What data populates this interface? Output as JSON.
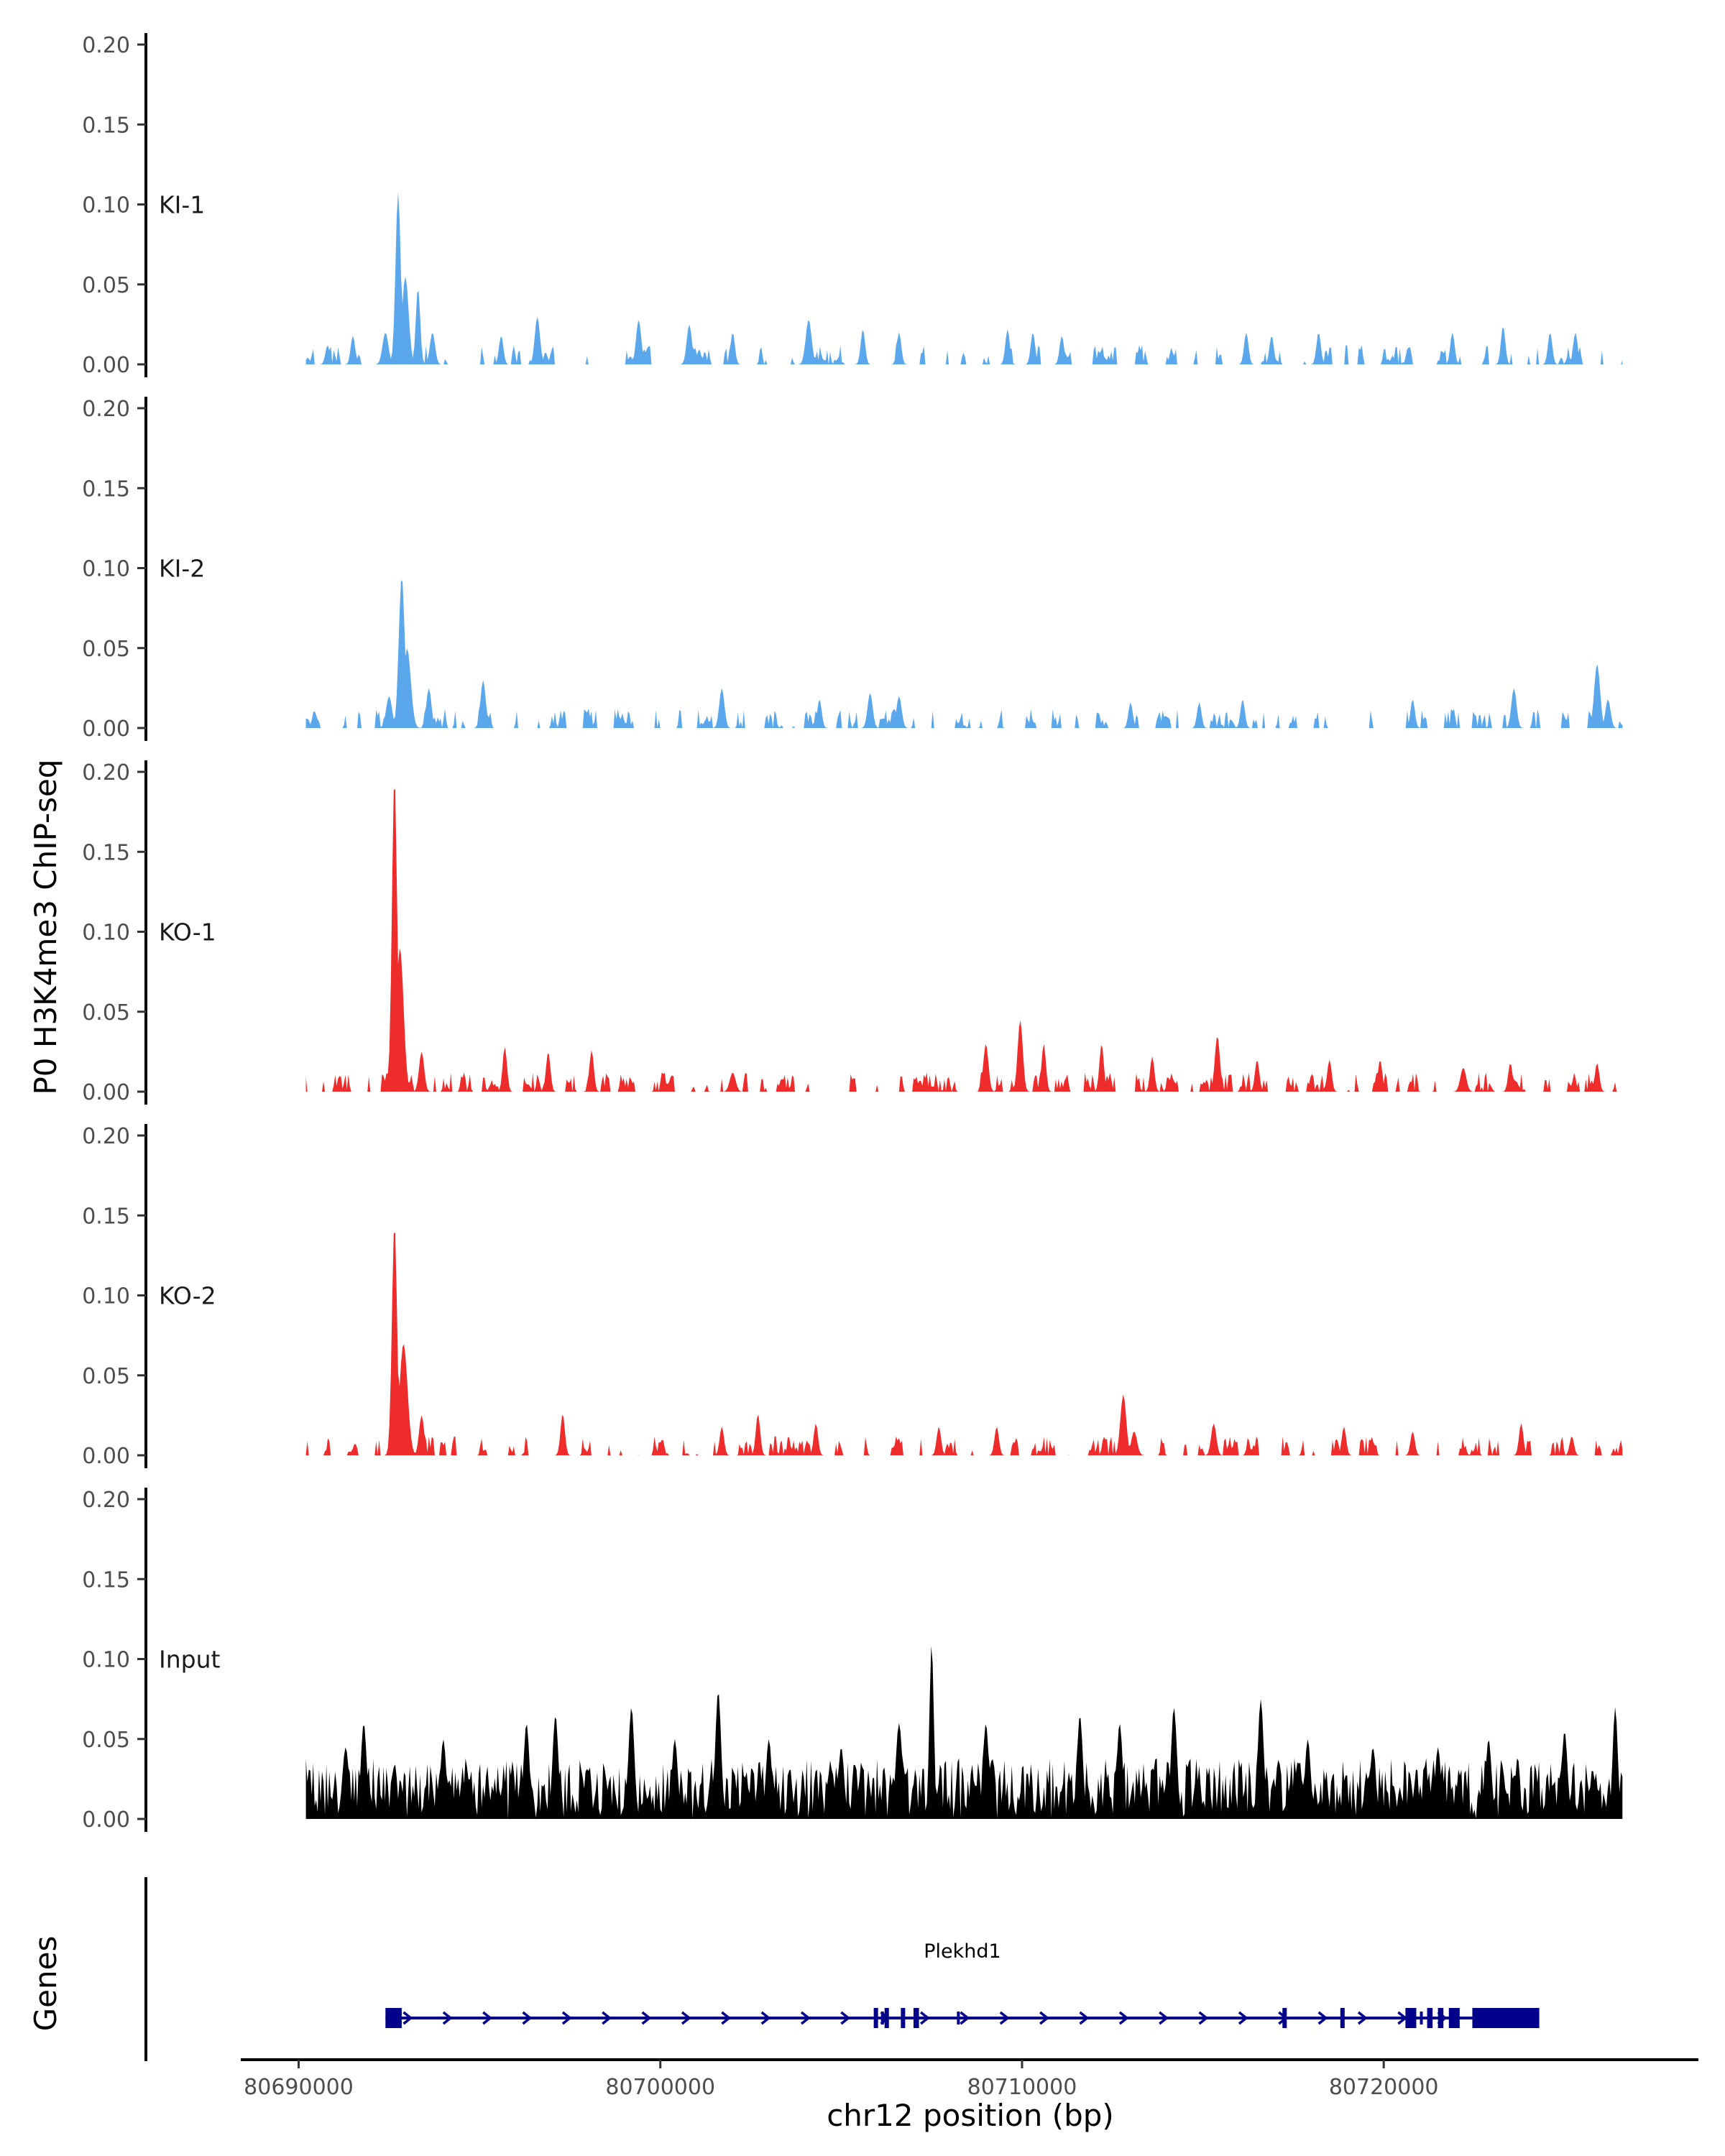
{
  "chart_data": {
    "type": "area",
    "ylabel": "P0 H3K4me3 ChIP-seq",
    "xlabel": "chr12 position (bp)",
    "xlim": [
      80688400,
      80728700
    ],
    "ylim": [
      0,
      0.2
    ],
    "yticks": [
      0,
      0.05,
      0.1,
      0.15,
      0.2
    ],
    "ytick_labels": [
      "0.00",
      "0.05",
      "0.10",
      "0.15",
      "0.20"
    ],
    "xticks": [
      80690000,
      80700000,
      80710000,
      80720000
    ],
    "xtick_labels": [
      "80690000",
      "80700000",
      "80710000",
      "80720000"
    ],
    "data_range": [
      80690200,
      80726600
    ],
    "tracks": [
      {
        "name": "KI-1",
        "color": "#5aa7ec",
        "peaks": [
          [
            80692750,
            0.108,
            70
          ],
          [
            80692950,
            0.055,
            90
          ],
          [
            80693300,
            0.048,
            60
          ],
          [
            80692400,
            0.02,
            80
          ],
          [
            80693700,
            0.02,
            70
          ],
          [
            80690800,
            0.012,
            60
          ],
          [
            80691500,
            0.018,
            60
          ],
          [
            80695600,
            0.018,
            60
          ],
          [
            80696600,
            0.03,
            70
          ],
          [
            80699400,
            0.028,
            70
          ],
          [
            80700800,
            0.025,
            70
          ],
          [
            80702000,
            0.02,
            60
          ],
          [
            80704100,
            0.028,
            80
          ],
          [
            80705600,
            0.022,
            60
          ],
          [
            80706600,
            0.02,
            60
          ],
          [
            80709600,
            0.022,
            60
          ],
          [
            80710300,
            0.02,
            60
          ],
          [
            80711100,
            0.018,
            60
          ],
          [
            80716200,
            0.02,
            60
          ],
          [
            80716900,
            0.018,
            60
          ],
          [
            80718200,
            0.02,
            60
          ],
          [
            80721900,
            0.02,
            60
          ],
          [
            80723300,
            0.024,
            60
          ],
          [
            80724600,
            0.02,
            60
          ],
          [
            80725300,
            0.02,
            60
          ]
        ]
      },
      {
        "name": "KI-2",
        "color": "#5aa7ec",
        "peaks": [
          [
            80692850,
            0.095,
            80
          ],
          [
            80693000,
            0.05,
            100
          ],
          [
            80693600,
            0.025,
            70
          ],
          [
            80692500,
            0.02,
            80
          ],
          [
            80695100,
            0.03,
            70
          ],
          [
            80701700,
            0.025,
            70
          ],
          [
            80704400,
            0.018,
            60
          ],
          [
            80705800,
            0.022,
            70
          ],
          [
            80706600,
            0.02,
            70
          ],
          [
            80713000,
            0.016,
            60
          ],
          [
            80714900,
            0.016,
            60
          ],
          [
            80716100,
            0.018,
            60
          ],
          [
            80720800,
            0.018,
            60
          ],
          [
            80723600,
            0.025,
            70
          ],
          [
            80725900,
            0.04,
            80
          ],
          [
            80726200,
            0.018,
            70
          ]
        ]
      },
      {
        "name": "KO-1",
        "color": "#ee2c2c",
        "peaks": [
          [
            80692650,
            0.197,
            70
          ],
          [
            80692800,
            0.09,
            100
          ],
          [
            80693400,
            0.025,
            70
          ],
          [
            80695700,
            0.028,
            60
          ],
          [
            80696900,
            0.025,
            60
          ],
          [
            80698100,
            0.026,
            60
          ],
          [
            80702000,
            0.012,
            80
          ],
          [
            80709000,
            0.03,
            70
          ],
          [
            80709950,
            0.045,
            70
          ],
          [
            80710600,
            0.03,
            60
          ],
          [
            80712200,
            0.03,
            60
          ],
          [
            80713600,
            0.022,
            60
          ],
          [
            80715400,
            0.035,
            70
          ],
          [
            80716500,
            0.02,
            60
          ],
          [
            80718500,
            0.02,
            60
          ],
          [
            80719900,
            0.02,
            60
          ],
          [
            80722200,
            0.015,
            80
          ],
          [
            80723500,
            0.018,
            60
          ],
          [
            80725900,
            0.018,
            60
          ]
        ]
      },
      {
        "name": "KO-2",
        "color": "#ee2c2c",
        "peaks": [
          [
            80692650,
            0.145,
            70
          ],
          [
            80692900,
            0.07,
            110
          ],
          [
            80693400,
            0.025,
            70
          ],
          [
            80697300,
            0.026,
            60
          ],
          [
            80701700,
            0.018,
            60
          ],
          [
            80702700,
            0.026,
            60
          ],
          [
            80704300,
            0.02,
            60
          ],
          [
            80707700,
            0.018,
            60
          ],
          [
            80709300,
            0.018,
            60
          ],
          [
            80712800,
            0.038,
            80
          ],
          [
            80713100,
            0.015,
            80
          ],
          [
            80715300,
            0.02,
            70
          ],
          [
            80718900,
            0.018,
            60
          ],
          [
            80720800,
            0.015,
            60
          ],
          [
            80723800,
            0.02,
            60
          ],
          [
            80725200,
            0.012,
            60
          ]
        ]
      },
      {
        "name": "Input",
        "color": "#000000",
        "peaks": [
          [
            80691300,
            0.045,
            90
          ],
          [
            80691800,
            0.06,
            80
          ],
          [
            80694000,
            0.05,
            80
          ],
          [
            80696300,
            0.06,
            80
          ],
          [
            80697100,
            0.065,
            80
          ],
          [
            80699200,
            0.07,
            80
          ],
          [
            80700400,
            0.05,
            80
          ],
          [
            80701600,
            0.08,
            80
          ],
          [
            80703000,
            0.05,
            80
          ],
          [
            80705000,
            0.045,
            80
          ],
          [
            80706600,
            0.06,
            90
          ],
          [
            80707500,
            0.11,
            60
          ],
          [
            80709000,
            0.06,
            80
          ],
          [
            80711600,
            0.065,
            80
          ],
          [
            80712700,
            0.06,
            80
          ],
          [
            80714200,
            0.07,
            80
          ],
          [
            80716600,
            0.075,
            80
          ],
          [
            80717900,
            0.05,
            80
          ],
          [
            80719700,
            0.045,
            80
          ],
          [
            80721500,
            0.045,
            80
          ],
          [
            80722900,
            0.05,
            80
          ],
          [
            80725000,
            0.055,
            80
          ],
          [
            80726400,
            0.07,
            70
          ]
        ]
      }
    ],
    "gene_track": {
      "title": "Genes",
      "gene": "Plekhd1",
      "strand": "+",
      "color": "#00008b",
      "start": 80692400,
      "end": 80724300,
      "exons": [
        [
          80692400,
          80692850
        ],
        [
          80705900,
          80706000
        ],
        [
          80706200,
          80706300
        ],
        [
          80706650,
          80706750
        ],
        [
          80707000,
          80707150
        ],
        [
          80717200,
          80717300
        ],
        [
          80718800,
          80718900
        ],
        [
          80720600,
          80720900
        ],
        [
          80721200,
          80721350
        ],
        [
          80721500,
          80721650
        ],
        [
          80721800,
          80722100
        ],
        [
          80722450,
          80724300
        ]
      ],
      "utr": [
        [
          80706100,
          80706130
        ],
        [
          80708200,
          80708230
        ],
        [
          80721000,
          80721050
        ]
      ]
    }
  }
}
